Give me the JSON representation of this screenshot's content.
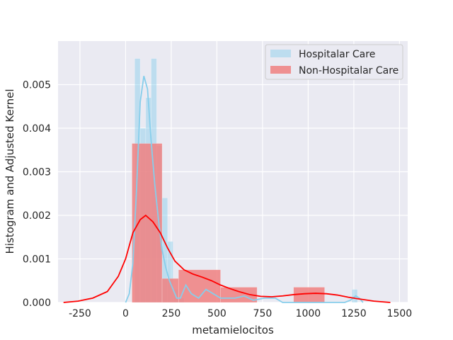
{
  "chart_data": {
    "type": "histogram",
    "title": "",
    "xlabel": "metamielocitos",
    "ylabel": "Histogram and Adjusted Kernel",
    "xlim": [
      -370,
      1545
    ],
    "ylim": [
      0,
      0.006
    ],
    "xticks": [
      -250,
      0,
      250,
      500,
      750,
      1000,
      1250,
      1500
    ],
    "yticks": [
      0.0,
      0.001,
      0.002,
      0.003,
      0.004,
      0.005
    ],
    "grid": true,
    "legend_position": "top-right",
    "colors": {
      "background": "#eaeaf2",
      "grid": "#ffffff",
      "hospitalar_bar": "#87ceeb",
      "hospitalar_line": "#87ceeb",
      "non_hospitalar_bar": "#f08080",
      "non_hospitalar_line": "#ff0000"
    },
    "series": [
      {
        "name": "Hospitalar Care",
        "kind": "histogram+kde",
        "bins": [
          {
            "x0": 50,
            "x1": 80,
            "density": 0.0056
          },
          {
            "x0": 80,
            "x1": 110,
            "density": 0.004
          },
          {
            "x0": 110,
            "x1": 140,
            "density": 0.0047
          },
          {
            "x0": 140,
            "x1": 170,
            "density": 0.0056
          },
          {
            "x0": 170,
            "x1": 200,
            "density": 0.0036
          },
          {
            "x0": 200,
            "x1": 230,
            "density": 0.0024
          },
          {
            "x0": 230,
            "x1": 260,
            "density": 0.0014
          },
          {
            "x0": 260,
            "x1": 290,
            "density": 0.0003
          },
          {
            "x0": 290,
            "x1": 320,
            "density": 0.0001
          },
          {
            "x0": 1240,
            "x1": 1270,
            "density": 0.0003
          }
        ],
        "kde": [
          [
            0,
            0.0
          ],
          [
            20,
            0.0002
          ],
          [
            40,
            0.0009
          ],
          [
            60,
            0.0026
          ],
          [
            80,
            0.0046
          ],
          [
            100,
            0.0052
          ],
          [
            120,
            0.0049
          ],
          [
            140,
            0.0037
          ],
          [
            160,
            0.0027
          ],
          [
            180,
            0.0019
          ],
          [
            200,
            0.0012
          ],
          [
            220,
            0.0008
          ],
          [
            240,
            0.0005
          ],
          [
            260,
            0.0003
          ],
          [
            280,
            0.0001
          ],
          [
            300,
            0.0001
          ],
          [
            330,
            0.0004
          ],
          [
            360,
            0.0002
          ],
          [
            400,
            0.0001
          ],
          [
            440,
            0.0003
          ],
          [
            480,
            0.0002
          ],
          [
            520,
            0.0001
          ],
          [
            560,
            0.0001
          ],
          [
            600,
            0.0001
          ],
          [
            650,
            0.00015
          ],
          [
            700,
            5e-05
          ],
          [
            760,
            0.0001
          ],
          [
            820,
            0.0001
          ],
          [
            860,
            0.0
          ],
          [
            920,
            0.0
          ],
          [
            1000,
            0.0
          ],
          [
            1100,
            0.0
          ],
          [
            1200,
            0.0
          ],
          [
            1230,
            5e-05
          ],
          [
            1260,
            0.00015
          ],
          [
            1280,
            0.0001
          ],
          [
            1300,
            0.0
          ]
        ]
      },
      {
        "name": "Non-Hospitalar Care",
        "kind": "histogram+kde",
        "bins": [
          {
            "x0": 35,
            "x1": 200,
            "density": 0.00365
          },
          {
            "x0": 200,
            "x1": 290,
            "density": 0.00055
          },
          {
            "x0": 290,
            "x1": 520,
            "density": 0.00075
          },
          {
            "x0": 520,
            "x1": 720,
            "density": 0.00035
          },
          {
            "x0": 920,
            "x1": 1090,
            "density": 0.00035
          }
        ],
        "kde": [
          [
            -340,
            0.0
          ],
          [
            -260,
            3e-05
          ],
          [
            -180,
            0.0001
          ],
          [
            -100,
            0.00025
          ],
          [
            -40,
            0.0006
          ],
          [
            0,
            0.001
          ],
          [
            40,
            0.0016
          ],
          [
            80,
            0.0019
          ],
          [
            110,
            0.002
          ],
          [
            150,
            0.00185
          ],
          [
            190,
            0.0016
          ],
          [
            230,
            0.00125
          ],
          [
            270,
            0.00095
          ],
          [
            320,
            0.00075
          ],
          [
            370,
            0.00065
          ],
          [
            420,
            0.00058
          ],
          [
            470,
            0.0005
          ],
          [
            520,
            0.0004
          ],
          [
            570,
            0.00032
          ],
          [
            620,
            0.00025
          ],
          [
            680,
            0.00018
          ],
          [
            740,
            0.00014
          ],
          [
            800,
            0.00013
          ],
          [
            860,
            0.00015
          ],
          [
            920,
            0.00018
          ],
          [
            980,
            0.0002
          ],
          [
            1040,
            0.00021
          ],
          [
            1100,
            0.0002
          ],
          [
            1160,
            0.00017
          ],
          [
            1220,
            0.00012
          ],
          [
            1280,
            8e-05
          ],
          [
            1360,
            3e-05
          ],
          [
            1450,
            0.0
          ]
        ]
      }
    ]
  }
}
